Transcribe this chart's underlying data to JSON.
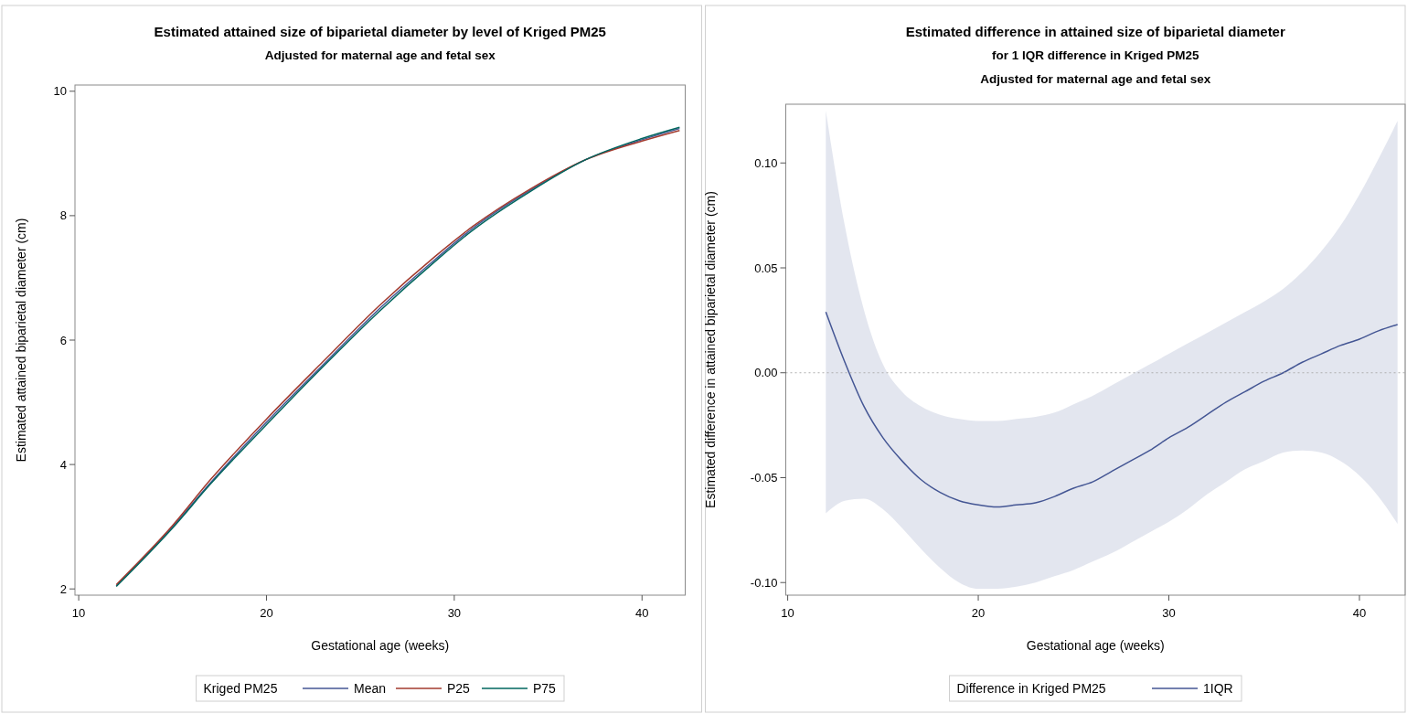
{
  "chart_data": [
    {
      "type": "line",
      "title": "Estimated attained size of biparietal diameter by level of Kriged PM25",
      "subtitle": [
        "Adjusted for maternal age and fetal sex"
      ],
      "xlabel": "Gestational age (weeks)",
      "ylabel": "Estimated attained biparietal diameter (cm)",
      "legend_title": "Kriged PM25",
      "legend": "bottom",
      "x": [
        12,
        15,
        17,
        20,
        23,
        26,
        29,
        31,
        34,
        37,
        40,
        42
      ],
      "series": [
        {
          "name": "Mean",
          "color": "#445694",
          "values": [
            2.05,
            3.0,
            3.7,
            4.68,
            5.6,
            6.5,
            7.3,
            7.8,
            8.4,
            8.9,
            9.22,
            9.4
          ]
        },
        {
          "name": "P25",
          "color": "#a23a2e",
          "values": [
            2.07,
            3.02,
            3.75,
            4.73,
            5.65,
            6.55,
            7.35,
            7.83,
            8.42,
            8.9,
            9.2,
            9.37
          ]
        },
        {
          "name": "P75",
          "color": "#01665e",
          "values": [
            2.04,
            2.98,
            3.68,
            4.64,
            5.57,
            6.46,
            7.27,
            7.77,
            8.38,
            8.9,
            9.24,
            9.42
          ]
        }
      ],
      "xlim": [
        9.8,
        42.3
      ],
      "ylim": [
        1.9,
        10.1
      ],
      "xticks": [
        10,
        20,
        30,
        40
      ],
      "yticks": [
        2,
        4,
        6,
        8,
        10
      ],
      "grid": false,
      "line_style": "solid"
    },
    {
      "type": "line",
      "title": "Estimated difference in attained size of biparietal diameter",
      "subtitle": [
        "for 1 IQR difference in Kriged PM25",
        "Adjusted for maternal age and fetal sex"
      ],
      "xlabel": "Gestational age (weeks)",
      "ylabel": "Estimated difference in attained biparietal diameter (cm)",
      "legend_title": "Difference in Kriged PM25",
      "legend": "bottom",
      "x": [
        12,
        13,
        14,
        15,
        16,
        17,
        18,
        19,
        20,
        21,
        22,
        23,
        24,
        25,
        26,
        27,
        28,
        29,
        30,
        31,
        32,
        33,
        34,
        35,
        36,
        37,
        38,
        39,
        40,
        41,
        42
      ],
      "series": [
        {
          "name": "1IQR",
          "color": "#445694",
          "values": [
            0.029,
            0.005,
            -0.016,
            -0.031,
            -0.042,
            -0.051,
            -0.057,
            -0.061,
            -0.063,
            -0.064,
            -0.063,
            -0.062,
            -0.059,
            -0.055,
            -0.052,
            -0.047,
            -0.042,
            -0.037,
            -0.031,
            -0.026,
            -0.02,
            -0.014,
            -0.009,
            -0.004,
            0.0,
            0.005,
            0.009,
            0.013,
            0.016,
            0.02,
            0.023
          ],
          "upper": [
            0.125,
            0.07,
            0.03,
            0.004,
            -0.009,
            -0.016,
            -0.02,
            -0.022,
            -0.023,
            -0.023,
            -0.022,
            -0.021,
            -0.019,
            -0.015,
            -0.011,
            -0.006,
            -0.001,
            0.004,
            0.009,
            0.014,
            0.019,
            0.024,
            0.029,
            0.034,
            0.04,
            0.048,
            0.058,
            0.07,
            0.085,
            0.102,
            0.12
          ],
          "lower": [
            -0.067,
            -0.061,
            -0.06,
            -0.065,
            -0.074,
            -0.084,
            -0.093,
            -0.1,
            -0.103,
            -0.103,
            -0.102,
            -0.1,
            -0.097,
            -0.094,
            -0.09,
            -0.086,
            -0.081,
            -0.076,
            -0.071,
            -0.065,
            -0.058,
            -0.052,
            -0.046,
            -0.042,
            -0.038,
            -0.037,
            -0.038,
            -0.042,
            -0.049,
            -0.059,
            -0.072
          ]
        }
      ],
      "ref_lines": [
        {
          "axis": "y",
          "value": 0,
          "color": "#b0b0b0",
          "line_style": "dotted"
        }
      ],
      "xlim": [
        9.9,
        42.4
      ],
      "ylim": [
        -0.106,
        0.128
      ],
      "xticks": [
        10,
        20,
        30,
        40
      ],
      "yticks": [
        {
          "value": -0.1,
          "label": "-0.10"
        },
        {
          "value": -0.05,
          "label": "-0.05"
        },
        {
          "value": 0,
          "label": "0.00"
        },
        {
          "value": 0.05,
          "label": "0.05"
        },
        {
          "value": 0.1,
          "label": "0.10"
        }
      ],
      "grid": false,
      "line_style": "solid"
    }
  ]
}
